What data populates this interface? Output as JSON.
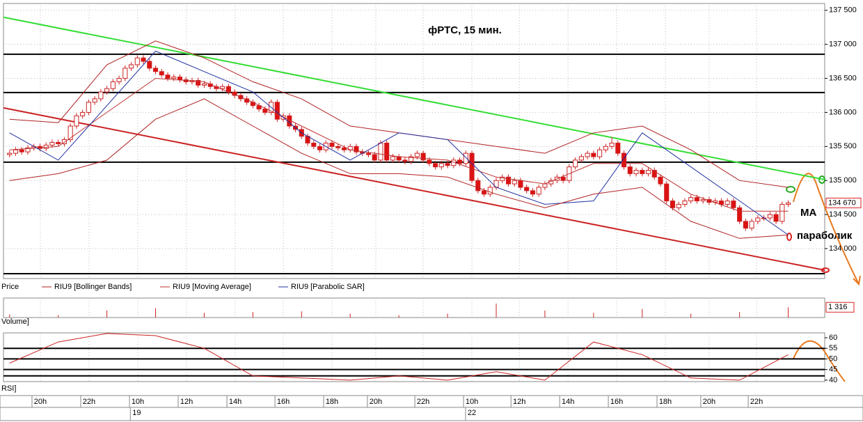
{
  "chart_data": {
    "type": "candlestick",
    "title": "фРТС,  15 мин.",
    "annotations": [
      "MA",
      "параболик"
    ],
    "price_label": "Price",
    "volume_label": "Volume]",
    "rsi_label": "RSI]",
    "xlim": [
      -1,
      134
    ],
    "xticks": [
      {
        "value": 5.06,
        "label": "20h"
      },
      {
        "value": 13.07,
        "label": "22h"
      },
      {
        "value": 21.08,
        "label": "10h"
      },
      {
        "value": 29.09,
        "label": "12h"
      },
      {
        "value": 37.1,
        "label": "14h"
      },
      {
        "value": 45.0,
        "label": "16h"
      },
      {
        "value": 53.0,
        "label": "18h"
      },
      {
        "value": 60.2,
        "label": "20h"
      },
      {
        "value": 68.0,
        "label": "22h"
      },
      {
        "value": 76.0,
        "label": "10h"
      },
      {
        "value": 83.8,
        "label": "12h"
      },
      {
        "value": 91.8,
        "label": "14h"
      },
      {
        "value": 99.8,
        "label": "16h"
      },
      {
        "value": 107.8,
        "label": "18h"
      },
      {
        "value": 115.0,
        "label": "20h"
      },
      {
        "value": 122.8,
        "label": "22h"
      }
    ],
    "date_ticks": [
      {
        "value": 20.2,
        "label": "19"
      },
      {
        "value": 75.3,
        "label": "22"
      }
    ],
    "ylim": [
      133560,
      137600
    ],
    "yticks": [
      {
        "value": 134000,
        "label": "134 000"
      },
      {
        "value": 134500,
        "label": "134 500"
      },
      {
        "value": 135000,
        "label": "135 000"
      },
      {
        "value": 135500,
        "label": "135 500"
      },
      {
        "value": 136000,
        "label": "136 000"
      },
      {
        "value": 136500,
        "label": "136 500"
      },
      {
        "value": 137000,
        "label": "137 000"
      },
      {
        "value": 137500,
        "label": "137 500"
      }
    ],
    "last_price": {
      "value": 134670,
      "label": "134 670"
    },
    "grid": true,
    "up_color": "#ffffff",
    "down_color": "#dd1111",
    "wick_color": "#cc2222",
    "candles": [
      [
        135380,
        135440,
        135340,
        135400
      ],
      [
        135400,
        135490,
        135360,
        135450
      ],
      [
        135450,
        135490,
        135380,
        135420
      ],
      [
        135420,
        135520,
        135380,
        135480
      ],
      [
        135480,
        135540,
        135440,
        135500
      ],
      [
        135500,
        135540,
        135430,
        135470
      ],
      [
        135470,
        135560,
        135430,
        135520
      ],
      [
        135520,
        135600,
        135480,
        135560
      ],
      [
        135560,
        135600,
        135500,
        135540
      ],
      [
        135540,
        135640,
        135500,
        135600
      ],
      [
        135600,
        135840,
        135560,
        135800
      ],
      [
        135800,
        135990,
        135760,
        135950
      ],
      [
        135950,
        136040,
        135910,
        136000
      ],
      [
        136000,
        136190,
        135960,
        136150
      ],
      [
        136150,
        136240,
        136110,
        136200
      ],
      [
        136200,
        136340,
        136160,
        136300
      ],
      [
        136300,
        136390,
        136260,
        136350
      ],
      [
        136350,
        136490,
        136310,
        136450
      ],
      [
        136450,
        136540,
        136410,
        136500
      ],
      [
        136500,
        136690,
        136460,
        136650
      ],
      [
        136650,
        136740,
        136610,
        136700
      ],
      [
        136700,
        136840,
        136660,
        136800
      ],
      [
        136800,
        136840,
        136710,
        136750
      ],
      [
        136750,
        136790,
        136610,
        136650
      ],
      [
        136650,
        136690,
        136560,
        136600
      ],
      [
        136600,
        136640,
        136510,
        136550
      ],
      [
        136550,
        136590,
        136460,
        136500
      ],
      [
        136500,
        136560,
        136460,
        136520
      ],
      [
        136520,
        136560,
        136440,
        136480
      ],
      [
        136480,
        136520,
        136410,
        136450
      ],
      [
        136450,
        136510,
        136410,
        136470
      ],
      [
        136470,
        136510,
        136360,
        136400
      ],
      [
        136400,
        136460,
        136360,
        136420
      ],
      [
        136420,
        136460,
        136340,
        136380
      ],
      [
        136380,
        136420,
        136310,
        136350
      ],
      [
        136350,
        136420,
        136310,
        136380
      ],
      [
        136380,
        136420,
        136260,
        136300
      ],
      [
        136300,
        136340,
        136210,
        136250
      ],
      [
        136250,
        136290,
        136160,
        136200
      ],
      [
        136200,
        136240,
        136110,
        136150
      ],
      [
        136150,
        136190,
        136060,
        136100
      ],
      [
        136100,
        136140,
        136010,
        136050
      ],
      [
        136050,
        136090,
        135960,
        136000
      ],
      [
        136000,
        136190,
        135960,
        136150
      ],
      [
        136150,
        136190,
        135860,
        135900
      ],
      [
        135900,
        135990,
        135860,
        135950
      ],
      [
        135950,
        135990,
        135760,
        135800
      ],
      [
        135800,
        135840,
        135710,
        135750
      ],
      [
        135750,
        135790,
        135610,
        135650
      ],
      [
        135650,
        135690,
        135510,
        135550
      ],
      [
        135550,
        135590,
        135460,
        135500
      ],
      [
        135500,
        135540,
        135410,
        135450
      ],
      [
        135450,
        135590,
        135410,
        135550
      ],
      [
        135550,
        135590,
        135460,
        135500
      ],
      [
        135500,
        135540,
        135440,
        135480
      ],
      [
        135480,
        135520,
        135410,
        135450
      ],
      [
        135450,
        135540,
        135410,
        135500
      ],
      [
        135500,
        135540,
        135380,
        135420
      ],
      [
        135420,
        135460,
        135360,
        135400
      ],
      [
        135400,
        135440,
        135340,
        135380
      ],
      [
        135380,
        135420,
        135260,
        135300
      ],
      [
        135300,
        135590,
        135260,
        135550
      ],
      [
        135550,
        135590,
        135260,
        135300
      ],
      [
        135300,
        135390,
        135260,
        135350
      ],
      [
        135350,
        135390,
        135260,
        135300
      ],
      [
        135300,
        135340,
        135240,
        135280
      ],
      [
        135280,
        135390,
        135240,
        135350
      ],
      [
        135350,
        135440,
        135310,
        135400
      ],
      [
        135400,
        135440,
        135260,
        135300
      ],
      [
        135300,
        135340,
        135210,
        135250
      ],
      [
        135250,
        135290,
        135160,
        135200
      ],
      [
        135200,
        135290,
        135160,
        135250
      ],
      [
        135250,
        135290,
        135180,
        135220
      ],
      [
        135220,
        135340,
        135180,
        135300
      ],
      [
        135300,
        135340,
        135210,
        135250
      ],
      [
        135250,
        135440,
        135210,
        135400
      ],
      [
        135400,
        135440,
        134960,
        135000
      ],
      [
        135000,
        135040,
        134810,
        134850
      ],
      [
        134850,
        134890,
        134760,
        134800
      ],
      [
        134800,
        134940,
        134760,
        134900
      ],
      [
        134900,
        135040,
        134860,
        135000
      ],
      [
        135000,
        135090,
        134960,
        135050
      ],
      [
        135050,
        135090,
        134910,
        134950
      ],
      [
        134950,
        135040,
        134910,
        135000
      ],
      [
        135000,
        135040,
        134860,
        134900
      ],
      [
        134900,
        134940,
        134810,
        134850
      ],
      [
        134850,
        134890,
        134760,
        134800
      ],
      [
        134800,
        134940,
        134760,
        134900
      ],
      [
        134900,
        134990,
        134860,
        134950
      ],
      [
        134950,
        135040,
        134910,
        135000
      ],
      [
        135000,
        135090,
        134960,
        135050
      ],
      [
        135050,
        135090,
        134960,
        135000
      ],
      [
        135000,
        135240,
        134960,
        135200
      ],
      [
        135200,
        135340,
        135160,
        135300
      ],
      [
        135300,
        135390,
        135260,
        135350
      ],
      [
        135350,
        135440,
        135310,
        135400
      ],
      [
        135400,
        135440,
        135310,
        135350
      ],
      [
        135350,
        135490,
        135310,
        135450
      ],
      [
        135450,
        135540,
        135410,
        135500
      ],
      [
        135500,
        135640,
        135460,
        135550
      ],
      [
        135550,
        135590,
        135360,
        135400
      ],
      [
        135400,
        135440,
        135160,
        135200
      ],
      [
        135200,
        135240,
        135060,
        135100
      ],
      [
        135100,
        135190,
        135060,
        135150
      ],
      [
        135150,
        135190,
        135060,
        135100
      ],
      [
        135100,
        135190,
        135060,
        135150
      ],
      [
        135150,
        135190,
        135010,
        135050
      ],
      [
        135050,
        135090,
        134910,
        134950
      ],
      [
        134950,
        134990,
        134660,
        134700
      ],
      [
        134700,
        134740,
        134560,
        134600
      ],
      [
        134600,
        134690,
        134560,
        134650
      ],
      [
        134650,
        134740,
        134610,
        134700
      ],
      [
        134700,
        134790,
        134660,
        134750
      ],
      [
        134750,
        134790,
        134660,
        134700
      ],
      [
        134700,
        134760,
        134660,
        134720
      ],
      [
        134720,
        134760,
        134640,
        134680
      ],
      [
        134680,
        134740,
        134640,
        134700
      ],
      [
        134700,
        134740,
        134610,
        134650
      ],
      [
        134650,
        134740,
        134610,
        134700
      ],
      [
        134700,
        134740,
        134560,
        134600
      ],
      [
        134600,
        134640,
        134360,
        134400
      ],
      [
        134400,
        134440,
        134260,
        134300
      ],
      [
        134300,
        134440,
        134260,
        134400
      ],
      [
        134400,
        134490,
        134360,
        134450
      ],
      [
        134450,
        134490,
        134410,
        134450
      ],
      [
        134450,
        134540,
        134410,
        134500
      ],
      [
        134500,
        134540,
        134360,
        134400
      ],
      [
        134400,
        134690,
        134360,
        134650
      ],
      [
        134650,
        134710,
        134610,
        134670
      ]
    ],
    "overlay_x": [
      0,
      8,
      16,
      24,
      32,
      40,
      48,
      56,
      64,
      72,
      80,
      88,
      96,
      104,
      112,
      120,
      128
    ],
    "overlays": [
      {
        "name": "RIU9 [Bollinger Bands]",
        "color": "#b02020",
        "values": [
          135900,
          135850,
          136700,
          137050,
          136800,
          136450,
          136200,
          135800,
          135700,
          135600,
          135500,
          135400,
          135700,
          135800,
          135450,
          135000,
          134900
        ]
      },
      {
        "name": "RIU9 [Moving Average]",
        "color": "#c03030",
        "values": [
          135450,
          135500,
          136000,
          136500,
          136450,
          136150,
          135800,
          135450,
          135350,
          135300,
          135050,
          134950,
          135250,
          135250,
          134800,
          134550,
          134550
        ]
      },
      {
        "name": "RIU9 [Parabolic SAR]",
        "color": "#2030a0",
        "values": [
          135700,
          135300,
          136100,
          136900,
          136600,
          136300,
          135700,
          135300,
          135700,
          135600,
          134900,
          134650,
          134700,
          135700,
          135200,
          134700,
          134200
        ]
      }
    ],
    "bollinger_lower": {
      "color": "#b02020",
      "values": [
        135000,
        135100,
        135300,
        135900,
        136200,
        135800,
        135400,
        135100,
        135100,
        135050,
        134800,
        134600,
        134800,
        134900,
        134400,
        134150,
        134200
      ]
    },
    "levels": {
      "color": "#000000",
      "values": [
        136855,
        136292,
        135269,
        133632
      ]
    },
    "trendlines": [
      {
        "color": "#33dd33",
        "values": [
          137398,
          135013
        ]
      },
      {
        "color": "#cc2222",
        "values": [
          136067,
          133683
        ]
      }
    ],
    "volume": {
      "color": "#cc2222",
      "ylim": [
        0,
        2500
      ],
      "values": [
        400,
        300,
        900,
        1200,
        600,
        700,
        800,
        500,
        300,
        500,
        1800,
        900,
        600,
        1100,
        500,
        700,
        1316
      ],
      "last": {
        "value": 1316,
        "label": "1 316"
      }
    },
    "rsi": {
      "color": "#cc2222",
      "ylim": [
        39.3,
        62.3
      ],
      "yticks": [
        40,
        45,
        50,
        55,
        60
      ],
      "levels": [
        55,
        50,
        45,
        42
      ],
      "values": [
        48,
        58,
        62,
        61,
        55,
        42,
        41,
        40,
        42,
        40,
        44,
        40,
        58,
        52,
        41,
        40,
        52
      ]
    }
  }
}
